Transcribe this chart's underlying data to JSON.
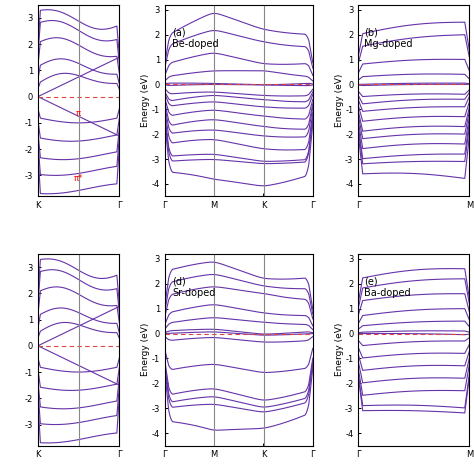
{
  "line_color": "#6633aa",
  "line_color2": "#8844cc",
  "fermi_color": "#dd4444",
  "vline_color": "#888888",
  "bg_color": "#ffffff",
  "panels": [
    {
      "label": "",
      "xticks": [
        "K",
        "Γ"
      ],
      "yticks": [
        -3,
        -2,
        -1,
        0,
        1,
        2,
        3
      ],
      "ylim": [
        -4,
        3.5
      ],
      "xlim": [
        0,
        1
      ],
      "vlines": [
        0.5
      ],
      "fermi": 0.0,
      "has_ylabel": false,
      "show_fermi_mark": true,
      "show_red_marks": true
    },
    {
      "label": "(a)\nBe-doped",
      "xticks": [
        "Γ",
        "M",
        "K",
        "Γ"
      ],
      "yticks": [
        -4,
        -3,
        -2,
        -1,
        0,
        1,
        2,
        3
      ],
      "ylim": [
        -4.5,
        3.2
      ],
      "xlim": [
        0,
        1
      ],
      "vlines": [
        0.333,
        0.667
      ],
      "fermi": 0.0,
      "has_ylabel": true
    },
    {
      "label": "(b)\nMg-doped",
      "xticks": [
        "Γ",
        "M"
      ],
      "yticks": [
        -4,
        -3,
        -2,
        -1,
        0,
        1,
        2,
        3
      ],
      "ylim": [
        -4.5,
        3.2
      ],
      "xlim": [
        0,
        1
      ],
      "vlines": [],
      "fermi": 0.0,
      "has_ylabel": true
    },
    {
      "label": "",
      "xticks": [
        "K",
        "Γ"
      ],
      "yticks": [
        -3,
        -2,
        -1,
        0,
        1,
        2,
        3
      ],
      "ylim": [
        -4,
        3.5
      ],
      "xlim": [
        0,
        1
      ],
      "vlines": [
        0.5
      ],
      "fermi": 0.0,
      "has_ylabel": false,
      "show_fermi_mark": true
    },
    {
      "label": "(d)\nSr-doped",
      "xticks": [
        "Γ",
        "M",
        "K",
        "Γ"
      ],
      "yticks": [
        -4,
        -3,
        -2,
        -1,
        0,
        1,
        2,
        3
      ],
      "ylim": [
        -4.5,
        3.2
      ],
      "xlim": [
        0,
        1
      ],
      "vlines": [
        0.333,
        0.667
      ],
      "fermi": 0.0,
      "has_ylabel": true
    },
    {
      "label": "(e)\nBa-doped",
      "xticks": [
        "Γ",
        "M"
      ],
      "yticks": [
        -4,
        -3,
        -2,
        -1,
        0,
        1,
        2,
        3
      ],
      "ylim": [
        -4.5,
        3.2
      ],
      "xlim": [
        0,
        1
      ],
      "vlines": [],
      "fermi": 0.0,
      "has_ylabel": true
    }
  ]
}
